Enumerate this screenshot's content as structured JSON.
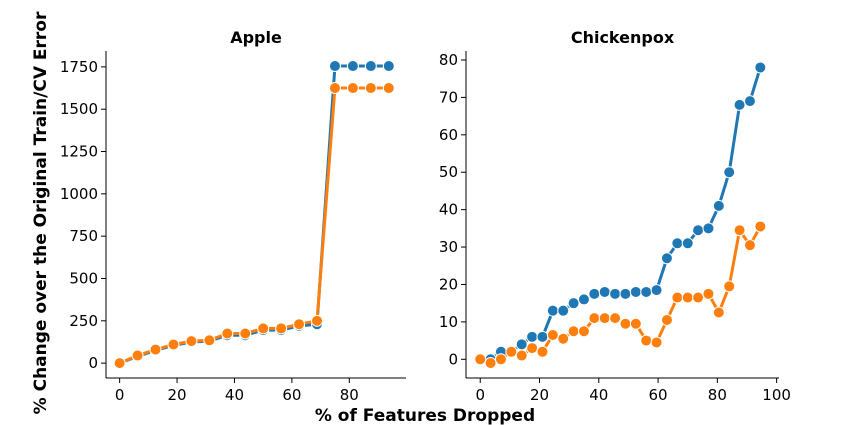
{
  "figure": {
    "xlabel": "% of Features Dropped",
    "ylabel": "% Change over the Original Train/CV Error"
  },
  "colors": {
    "series_a": "#1f77b4",
    "series_b": "#ff7f0e"
  },
  "chart_data": [
    {
      "type": "line",
      "title": "Apple",
      "xlim": [
        -4.75,
        99.75
      ],
      "ylim": [
        -87.8,
        1843.8
      ],
      "xticks": [
        0,
        20,
        40,
        60,
        80
      ],
      "yticks": [
        0,
        250,
        500,
        750,
        1000,
        1250,
        1500,
        1750
      ],
      "grid": false,
      "series": [
        {
          "color": "#1f77b4",
          "x": [
            0,
            6.25,
            12.5,
            18.75,
            25,
            31.25,
            37.5,
            43.75,
            50,
            56.25,
            62.5,
            68.75,
            75,
            81.25,
            87.5,
            93.75
          ],
          "y": [
            0,
            40,
            75,
            105,
            125,
            130,
            165,
            165,
            195,
            195,
            220,
            230,
            1755,
            1755,
            1755,
            1755
          ]
        },
        {
          "color": "#ff7f0e",
          "x": [
            0,
            6.25,
            12.5,
            18.75,
            25,
            31.25,
            37.5,
            43.75,
            50,
            56.25,
            62.5,
            68.75,
            75,
            81.25,
            87.5,
            93.75
          ],
          "y": [
            0,
            45,
            80,
            110,
            130,
            135,
            175,
            175,
            205,
            205,
            230,
            250,
            1625,
            1625,
            1625,
            1625
          ]
        }
      ]
    },
    {
      "type": "line",
      "title": "Chickenpox",
      "xlim": [
        -4.8,
        100.8
      ],
      "ylim": [
        -5.0,
        82.4
      ],
      "xticks": [
        0,
        20,
        40,
        60,
        80,
        100
      ],
      "yticks": [
        0,
        10,
        20,
        30,
        40,
        50,
        60,
        70,
        80
      ],
      "grid": false,
      "series": [
        {
          "color": "#1f77b4",
          "x": [
            0,
            3.5,
            7,
            10.5,
            14,
            17.5,
            21,
            24.5,
            28,
            31.5,
            35,
            38.5,
            42,
            45.5,
            49,
            52.5,
            56,
            59.5,
            63,
            66.5,
            70,
            73.5,
            77,
            80.5,
            84,
            87.5,
            91,
            94.5
          ],
          "y": [
            0,
            0,
            2,
            2,
            4,
            6,
            6,
            13,
            13,
            15,
            16,
            17.5,
            18,
            17.5,
            17.5,
            18,
            18,
            18.5,
            27,
            31,
            31,
            34.5,
            35,
            41,
            50,
            68,
            69,
            78
          ]
        },
        {
          "color": "#ff7f0e",
          "x": [
            0,
            3.5,
            7,
            10.5,
            14,
            17.5,
            21,
            24.5,
            28,
            31.5,
            35,
            38.5,
            42,
            45.5,
            49,
            52.5,
            56,
            59.5,
            63,
            66.5,
            70,
            73.5,
            77,
            80.5,
            84,
            87.5,
            91,
            94.5
          ],
          "y": [
            0,
            -1,
            0,
            2,
            1,
            3,
            2,
            6.5,
            5.5,
            7.5,
            7.5,
            11,
            11,
            11,
            9.5,
            9.5,
            5,
            4.5,
            10.5,
            16.5,
            16.5,
            16.5,
            17.5,
            12.5,
            19.5,
            34.5,
            30.5,
            35.5
          ]
        }
      ]
    }
  ]
}
